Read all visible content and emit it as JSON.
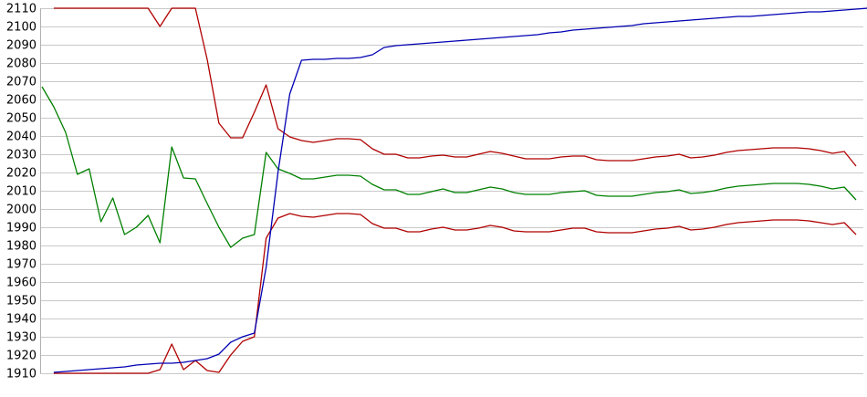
{
  "page": {
    "background_color": "#ffffff",
    "title": ""
  },
  "chart_data": {
    "type": "line",
    "title": "",
    "xlabel": "",
    "ylabel": "",
    "legend": "none",
    "x_axis": {
      "tick_labels_visible": false,
      "num_points": 70
    },
    "y_axis": {
      "min": 1910,
      "max": 2110,
      "tick_step": 10,
      "tick_labels": [
        "2110",
        "2100",
        "2090",
        "2080",
        "2070",
        "2060",
        "2050",
        "2040",
        "2030",
        "2020",
        "2010",
        "2000",
        "1990",
        "1980",
        "1970",
        "1960",
        "1950",
        "1940",
        "1930",
        "1920",
        "1910"
      ]
    },
    "grid": {
      "horizontal": true,
      "vertical": false,
      "grid_color": "#c9c9c9",
      "axis_line_color": "#b0b0b0"
    },
    "series": [
      {
        "name": "red-line-upper",
        "color": "#b00000",
        "start_index": 1,
        "values": [
          2110,
          2110,
          2110,
          2110,
          2110,
          2110,
          2110,
          2110,
          2110,
          2100,
          2110,
          2110,
          2110,
          2082,
          2047,
          2039,
          2039,
          2053,
          2068,
          2044,
          2039.5,
          2037.5,
          2036.5,
          2037.5,
          2038.5,
          2038.5,
          2038,
          2033,
          2030,
          2030,
          2028,
          2028,
          2029,
          2029.5,
          2028.5,
          2028.5,
          2030,
          2031.5,
          2030.5,
          2029,
          2027.5,
          2027.5,
          2027.5,
          2028.5,
          2029,
          2029,
          2027,
          2026.5,
          2026.5,
          2026.5,
          2027.5,
          2028.5,
          2029,
          2030,
          2028,
          2028.5,
          2029.5,
          2031,
          2032,
          2032.5,
          2033,
          2033.5,
          2033.5,
          2033.5,
          2033,
          2032,
          2030.5,
          2031.5,
          2023.5
        ]
      },
      {
        "name": "red-line-lower",
        "color": "#b00000",
        "start_index": 1,
        "values": [
          1910,
          1910,
          1910,
          1910,
          1910,
          1910,
          1910,
          1910,
          1910,
          1912,
          1926,
          1912,
          1917,
          1911.5,
          1910.5,
          1920,
          1927.5,
          1930,
          1984,
          1995,
          1997.5,
          1996,
          1995.5,
          1996.5,
          1997.5,
          1997.5,
          1997,
          1992,
          1989.5,
          1989.5,
          1987.5,
          1987.5,
          1989,
          1990,
          1988.5,
          1988.5,
          1989.5,
          1991,
          1990,
          1988,
          1987.5,
          1987.5,
          1987.5,
          1988.5,
          1989.5,
          1989.5,
          1987.5,
          1987,
          1987,
          1987,
          1988,
          1989,
          1989.5,
          1990.5,
          1988.5,
          1989,
          1990,
          1991.5,
          1992.5,
          1993,
          1993.5,
          1994,
          1994,
          1994,
          1993.5,
          1992.5,
          1991.5,
          1992.5,
          1986
        ]
      },
      {
        "name": "green-line",
        "color": "#008000",
        "start_index": 0,
        "values": [
          2067,
          2056,
          2042,
          2019,
          2022,
          1993,
          2006,
          1986,
          1990,
          1996.5,
          1981.5,
          2034,
          2017,
          2016.5,
          2003,
          1990,
          1979,
          1984,
          1986,
          2031,
          2022,
          2019.5,
          2016.5,
          2016.5,
          2017.5,
          2018.5,
          2018.5,
          2018,
          2013.5,
          2010.5,
          2010.5,
          2008,
          2008,
          2009.5,
          2011,
          2009,
          2009,
          2010.5,
          2012,
          2011,
          2009,
          2008,
          2008,
          2008,
          2009,
          2009.5,
          2010,
          2007.5,
          2007,
          2007,
          2007,
          2008,
          2009,
          2009.5,
          2010.5,
          2008.5,
          2009,
          2010,
          2011.5,
          2012.5,
          2013,
          2013.5,
          2014,
          2014,
          2014,
          2013.5,
          2012.5,
          2011,
          2012,
          2005
        ]
      },
      {
        "name": "blue-line",
        "color": "#0000b3",
        "start_index": 1,
        "values": [
          1910.5,
          1911,
          1911.5,
          1912,
          1912.5,
          1913,
          1913.5,
          1914.5,
          1915,
          1915.5,
          1915.5,
          1916,
          1917,
          1918,
          1920.5,
          1927,
          1930,
          1932,
          1968,
          2020,
          2063,
          2081.5,
          2082,
          2082,
          2082.5,
          2082.5,
          2083,
          2084.5,
          2088.5,
          2089.5,
          2090,
          2090.5,
          2091,
          2091.5,
          2092,
          2092.5,
          2093,
          2093.5,
          2094,
          2094.5,
          2095,
          2095.5,
          2096.5,
          2097,
          2098,
          2098.5,
          2099,
          2099.5,
          2100,
          2100.5,
          2101.5,
          2102,
          2102.5,
          2103,
          2103.5,
          2104,
          2104.5,
          2105,
          2105.5,
          2105.5,
          2106,
          2106.5,
          2107,
          2107.5,
          2108,
          2108,
          2108.5,
          2109,
          2109.5,
          2110
        ]
      }
    ]
  }
}
